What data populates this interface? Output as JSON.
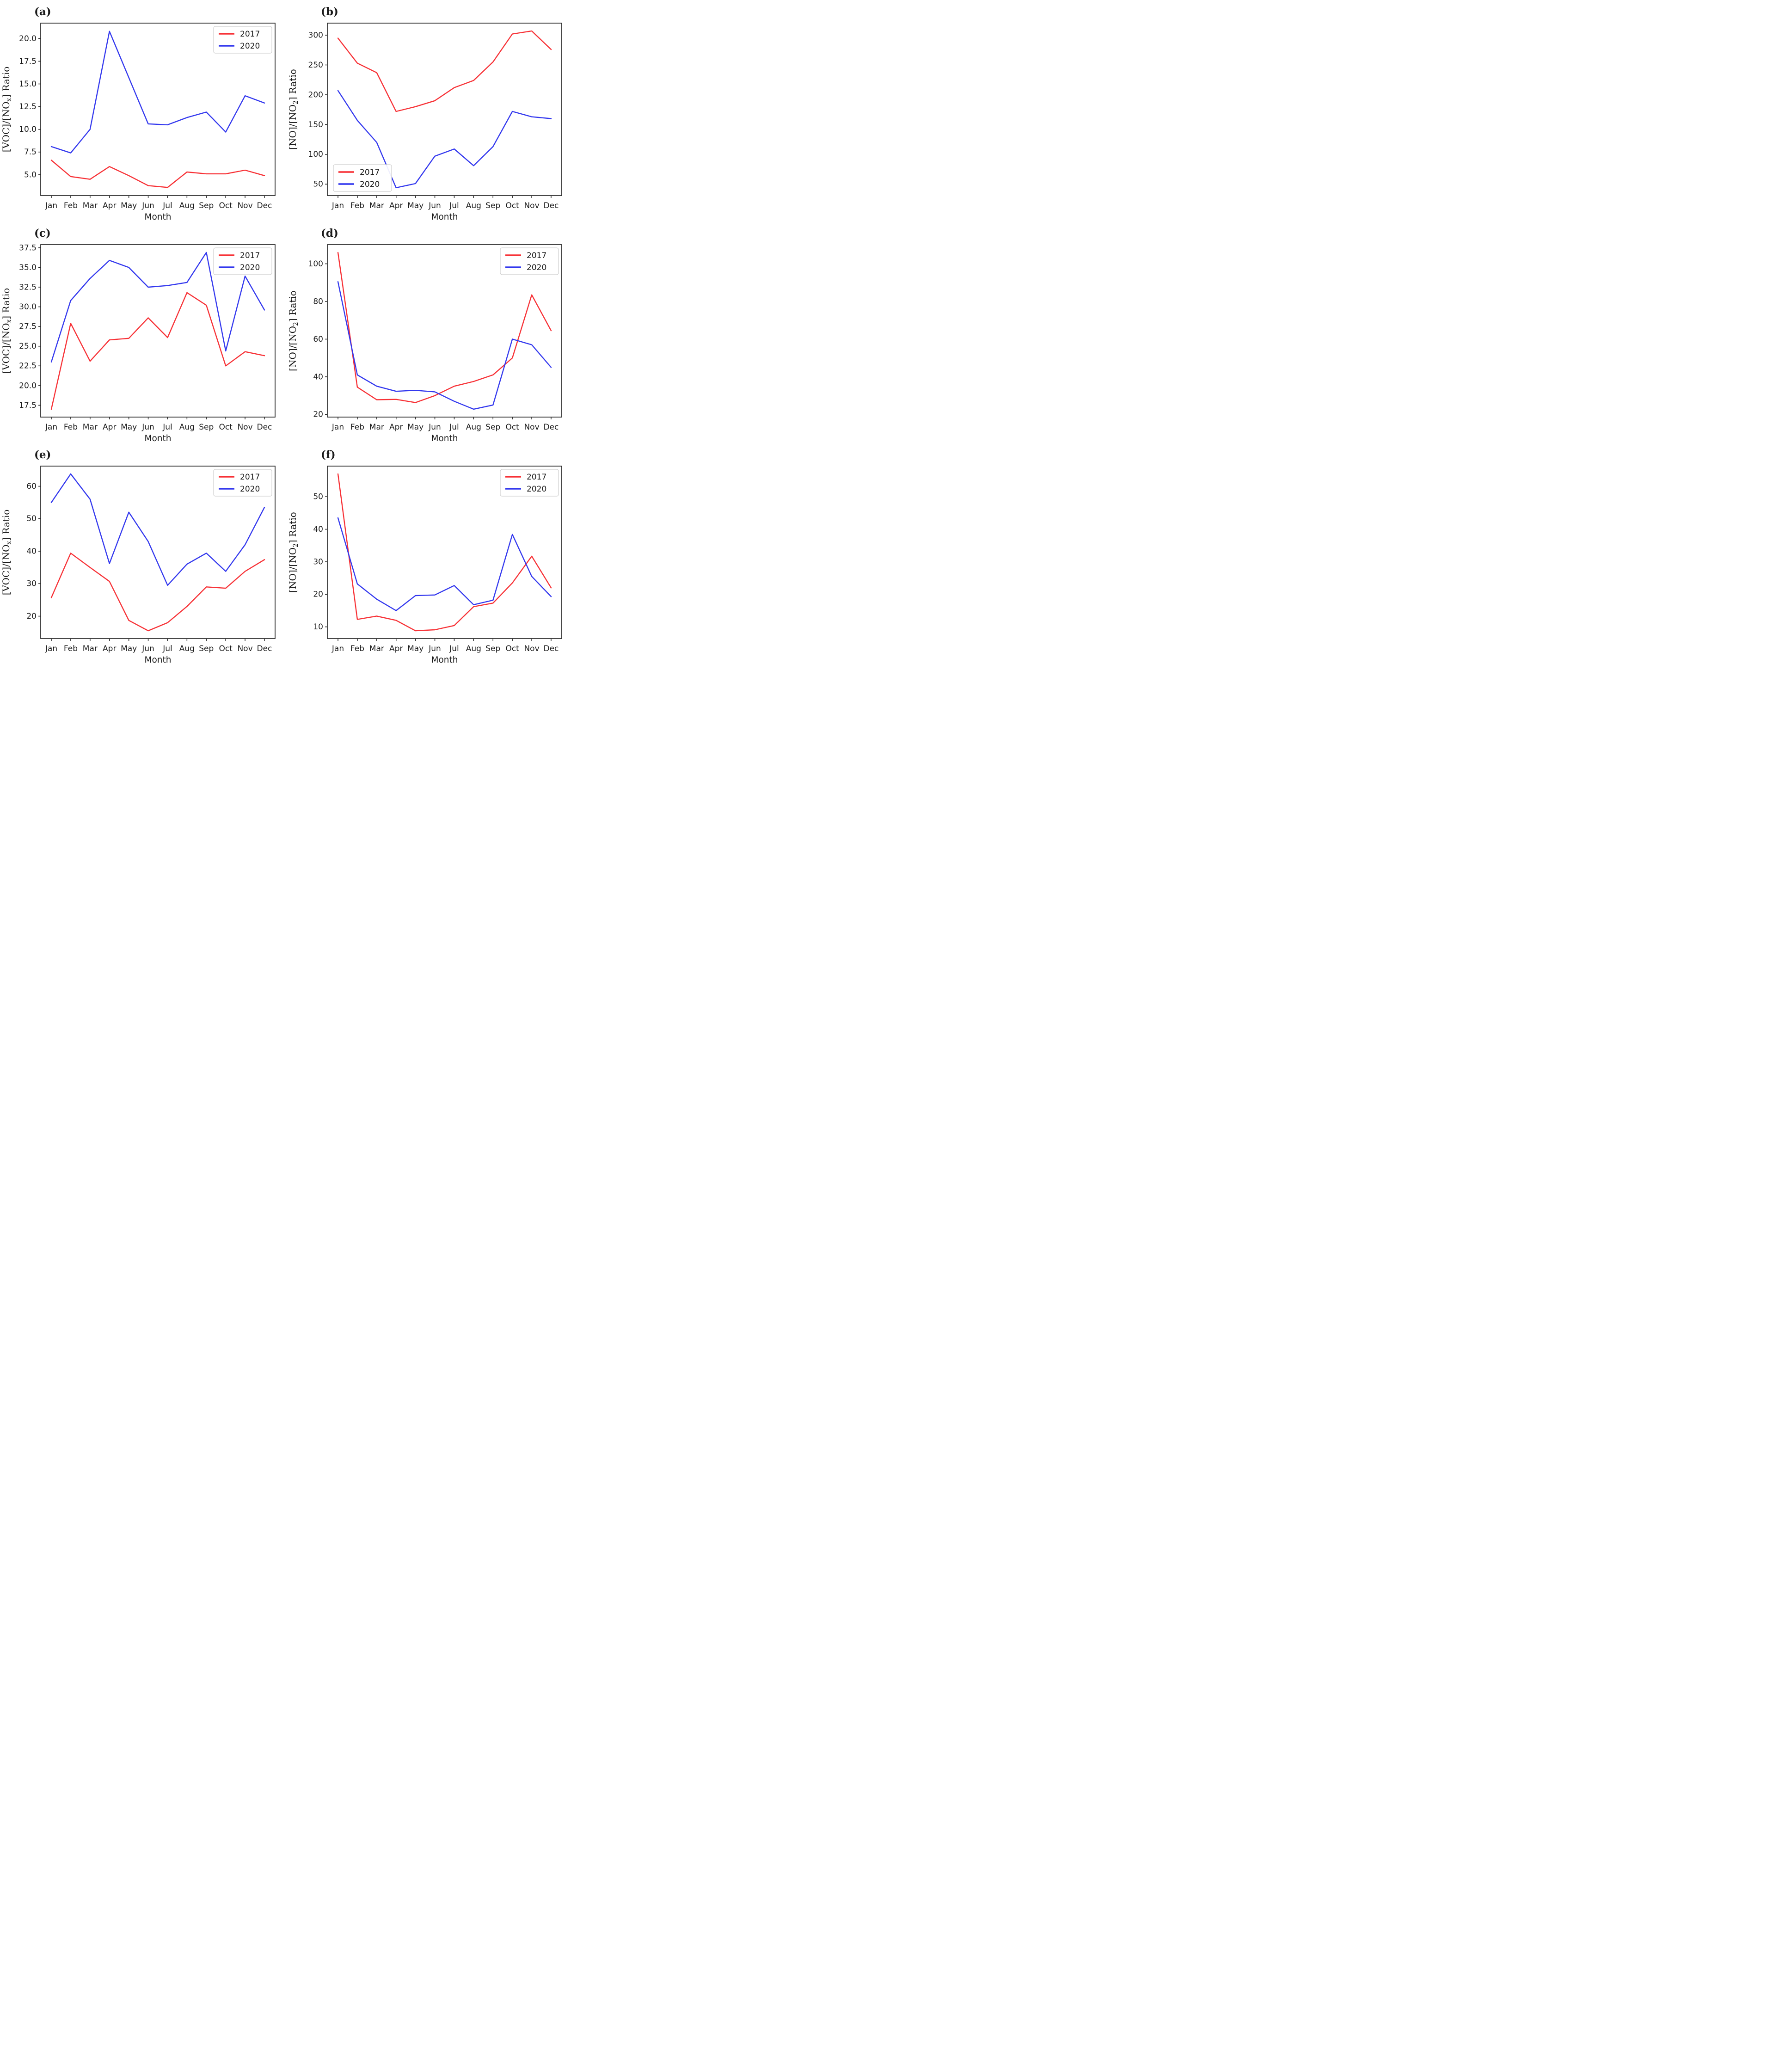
{
  "figure": {
    "description": "Six-panel line chart figure comparing monthly ratios for 2017 and 2020",
    "rows": 3,
    "cols": 2
  },
  "months": [
    "Jan",
    "Feb",
    "Mar",
    "Apr",
    "May",
    "Jun",
    "Jul",
    "Aug",
    "Sep",
    "Oct",
    "Nov",
    "Dec"
  ],
  "colors": {
    "series_2017": "#f73136",
    "series_2020": "#3338ee",
    "axis": "#262626",
    "text": "#1a1a1a",
    "legend_border": "#cfcfcf",
    "background": "#ffffff"
  },
  "chart_data": [
    {
      "type": "line",
      "panel_label": "(a)",
      "xlabel": "Month",
      "ylabel": "[VOC]/[NO_x] Ratio",
      "ylim": [
        2.7,
        21.7
      ],
      "yticks": [
        "5.0",
        "7.5",
        "10.0",
        "12.5",
        "15.0",
        "17.5",
        "20.0"
      ],
      "legend_position": "top-right",
      "grid": false,
      "series": [
        {
          "name": "2017",
          "color": "#f73136",
          "values": [
            6.6,
            4.8,
            4.5,
            5.9,
            4.9,
            3.8,
            3.6,
            5.3,
            5.1,
            5.1,
            5.5,
            4.9
          ]
        },
        {
          "name": "2020",
          "color": "#3338ee",
          "values": [
            8.1,
            7.4,
            10.0,
            20.8,
            15.7,
            10.6,
            10.5,
            11.3,
            11.9,
            9.7,
            13.7,
            12.9
          ]
        }
      ]
    },
    {
      "type": "line",
      "panel_label": "(b)",
      "xlabel": "Month",
      "ylabel": "[NO]/[NO_2] Ratio",
      "ylim": [
        30.8,
        320.2
      ],
      "yticks": [
        "50",
        "100",
        "150",
        "200",
        "250",
        "300"
      ],
      "legend_position": "bottom-left",
      "grid": false,
      "series": [
        {
          "name": "2017",
          "color": "#f73136",
          "values": [
            295,
            253,
            237,
            172,
            180,
            190,
            212,
            224,
            255,
            302,
            307,
            276
          ]
        },
        {
          "name": "2020",
          "color": "#3338ee",
          "values": [
            207,
            157,
            120,
            44,
            51,
            97,
            109,
            81,
            113,
            172,
            163,
            160
          ]
        }
      ]
    },
    {
      "type": "line",
      "panel_label": "(c)",
      "xlabel": "Month",
      "ylabel": "[VOC]/[NO_x] Ratio",
      "ylim": [
        16.0,
        37.9
      ],
      "yticks": [
        "17.5",
        "20.0",
        "22.5",
        "25.0",
        "27.5",
        "30.0",
        "32.5",
        "35.0",
        "37.5"
      ],
      "legend_position": "top-right",
      "grid": false,
      "series": [
        {
          "name": "2017",
          "color": "#f73136",
          "values": [
            17.0,
            27.9,
            23.1,
            25.8,
            26.0,
            28.6,
            26.1,
            31.8,
            30.2,
            22.5,
            24.3,
            23.8
          ]
        },
        {
          "name": "2020",
          "color": "#3338ee",
          "values": [
            23.0,
            30.8,
            33.6,
            35.9,
            35.0,
            32.5,
            32.7,
            33.1,
            36.9,
            24.4,
            33.9,
            29.6
          ]
        }
      ]
    },
    {
      "type": "line",
      "panel_label": "(d)",
      "xlabel": "Month",
      "ylabel": "[NO]/[NO_2] Ratio",
      "ylim": [
        18.6,
        110.2
      ],
      "yticks": [
        "20",
        "40",
        "60",
        "80",
        "100"
      ],
      "legend_position": "top-right",
      "grid": false,
      "series": [
        {
          "name": "2017",
          "color": "#f73136",
          "values": [
            106,
            34.5,
            27.8,
            28.0,
            26.3,
            30.0,
            35.0,
            37.5,
            41.0,
            50.0,
            83.5,
            64.5
          ]
        },
        {
          "name": "2020",
          "color": "#3338ee",
          "values": [
            90.5,
            41.0,
            35.0,
            32.3,
            32.8,
            32.0,
            27.0,
            22.8,
            25.0,
            60.0,
            57.0,
            45.0
          ]
        }
      ]
    },
    {
      "type": "line",
      "panel_label": "(e)",
      "xlabel": "Month",
      "ylabel": "[VOC]/[NO_x] Ratio",
      "ylim": [
        13.1,
        66.2
      ],
      "yticks": [
        "20",
        "30",
        "40",
        "50",
        "60"
      ],
      "legend_position": "top-right",
      "grid": false,
      "series": [
        {
          "name": "2017",
          "color": "#f73136",
          "values": [
            25.7,
            39.4,
            35.0,
            30.7,
            18.7,
            15.5,
            18.0,
            23.0,
            29.0,
            28.6,
            33.8,
            37.4
          ]
        },
        {
          "name": "2020",
          "color": "#3338ee",
          "values": [
            55.0,
            63.8,
            56.0,
            36.2,
            52.0,
            43.0,
            29.5,
            36.0,
            39.4,
            33.8,
            42.0,
            53.5
          ]
        }
      ]
    },
    {
      "type": "line",
      "panel_label": "(f)",
      "xlabel": "Month",
      "ylabel": "[NO]/[NO_2] Ratio",
      "ylim": [
        6.4,
        59.4
      ],
      "yticks": [
        "10",
        "20",
        "30",
        "40",
        "50"
      ],
      "legend_position": "top-right",
      "grid": false,
      "series": [
        {
          "name": "2017",
          "color": "#f73136",
          "values": [
            57.0,
            12.3,
            13.3,
            12.0,
            8.8,
            9.1,
            10.4,
            16.2,
            17.3,
            23.5,
            31.7,
            22.0
          ]
        },
        {
          "name": "2020",
          "color": "#3338ee",
          "values": [
            43.5,
            23.2,
            18.5,
            15.0,
            19.6,
            19.8,
            22.7,
            16.8,
            18.2,
            38.4,
            25.5,
            19.3
          ]
        }
      ]
    }
  ]
}
